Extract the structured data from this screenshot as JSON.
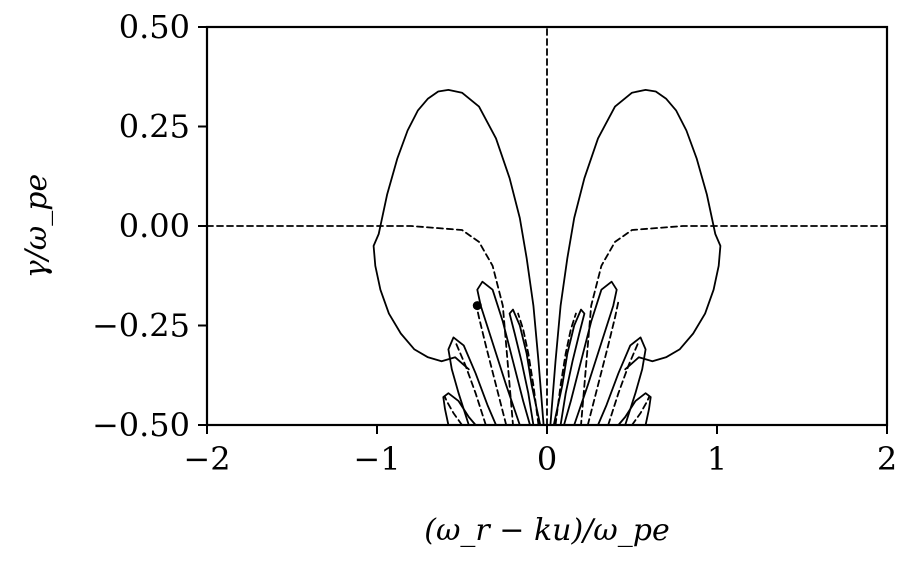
{
  "chart_data": {
    "type": "line",
    "title": "",
    "xlabel": "(ω_r − ku)/ω_pe",
    "ylabel": "γ/ω_pe",
    "xlim": [
      -2,
      2
    ],
    "ylim": [
      -0.5,
      0.5
    ],
    "xticks": [
      -2,
      -1,
      0,
      1,
      2
    ],
    "xtick_labels": [
      "−2",
      "−1",
      "0",
      "1",
      "2"
    ],
    "yticks": [
      -0.5,
      -0.25,
      0.0,
      0.25,
      0.5
    ],
    "ytick_labels": [
      "−0.50",
      "−0.25",
      "0.00",
      "0.25",
      "0.50"
    ],
    "grid": false,
    "legend": "none",
    "marker_point": {
      "x": -0.41,
      "y": -0.2
    },
    "series": [
      {
        "style": "solid",
        "x": [
          0.02,
          0.05,
          0.08,
          0.12,
          0.16,
          0.22,
          0.3,
          0.4,
          0.5,
          0.58,
          0.64,
          0.7,
          0.76,
          0.82,
          0.88,
          0.94,
          0.99,
          1.02,
          1.01,
          0.98,
          0.93,
          0.86,
          0.78,
          0.7,
          0.62,
          0.54,
          0.46
        ],
        "y": [
          -0.5,
          -0.34,
          -0.2,
          -0.08,
          0.02,
          0.12,
          0.22,
          0.3,
          0.335,
          0.342,
          0.338,
          0.32,
          0.29,
          0.24,
          0.17,
          0.08,
          -0.02,
          -0.05,
          -0.1,
          -0.16,
          -0.22,
          -0.27,
          -0.31,
          -0.33,
          -0.34,
          -0.33,
          -0.36
        ]
      },
      {
        "style": "solid",
        "x": [
          -0.02,
          -0.05,
          -0.08,
          -0.12,
          -0.16,
          -0.22,
          -0.3,
          -0.4,
          -0.5,
          -0.58,
          -0.64,
          -0.7,
          -0.76,
          -0.82,
          -0.88,
          -0.94,
          -0.99,
          -1.02,
          -1.01,
          -0.98,
          -0.93,
          -0.86,
          -0.78,
          -0.7,
          -0.62,
          -0.54,
          -0.46
        ],
        "y": [
          -0.5,
          -0.34,
          -0.2,
          -0.08,
          0.02,
          0.12,
          0.22,
          0.3,
          0.335,
          0.342,
          0.338,
          0.32,
          0.29,
          0.24,
          0.17,
          0.08,
          -0.02,
          -0.05,
          -0.1,
          -0.16,
          -0.22,
          -0.27,
          -0.31,
          -0.33,
          -0.34,
          -0.33,
          -0.36
        ]
      },
      {
        "style": "dashed",
        "x": [
          -2.0,
          -0.8,
          -0.5,
          -0.4,
          -0.32,
          -0.26,
          -0.2
        ],
        "y": [
          0.0,
          0.0,
          -0.01,
          -0.04,
          -0.1,
          -0.2,
          -0.5
        ]
      },
      {
        "style": "dashed",
        "x": [
          2.0,
          0.8,
          0.5,
          0.4,
          0.32,
          0.26,
          0.2
        ],
        "y": [
          0.0,
          0.0,
          -0.01,
          -0.04,
          -0.1,
          -0.2,
          -0.5
        ]
      },
      {
        "style": "dashed",
        "x": [
          0.0,
          0.0
        ],
        "y": [
          -0.5,
          0.5
        ]
      },
      {
        "style": "solid",
        "x": [
          -0.16,
          -0.24,
          -0.33,
          -0.39,
          -0.41,
          -0.38,
          -0.32,
          -0.26,
          -0.2,
          -0.14,
          -0.1
        ],
        "y": [
          -0.5,
          -0.4,
          -0.28,
          -0.2,
          -0.16,
          -0.14,
          -0.16,
          -0.24,
          -0.34,
          -0.44,
          -0.5
        ]
      },
      {
        "style": "solid",
        "x": [
          0.16,
          0.24,
          0.33,
          0.39,
          0.41,
          0.38,
          0.32,
          0.26,
          0.2,
          0.14,
          0.1
        ],
        "y": [
          -0.5,
          -0.4,
          -0.28,
          -0.2,
          -0.16,
          -0.14,
          -0.16,
          -0.24,
          -0.34,
          -0.44,
          -0.5
        ]
      },
      {
        "style": "solid",
        "x": [
          -0.46,
          -0.52,
          -0.56,
          -0.58,
          -0.55,
          -0.49,
          -0.42,
          -0.35,
          -0.3
        ],
        "y": [
          -0.5,
          -0.42,
          -0.36,
          -0.31,
          -0.28,
          -0.3,
          -0.37,
          -0.45,
          -0.5
        ]
      },
      {
        "style": "solid",
        "x": [
          0.46,
          0.52,
          0.56,
          0.58,
          0.55,
          0.49,
          0.42,
          0.35,
          0.3
        ],
        "y": [
          -0.5,
          -0.42,
          -0.36,
          -0.31,
          -0.28,
          -0.3,
          -0.37,
          -0.45,
          -0.5
        ]
      },
      {
        "style": "solid",
        "x": [
          -0.58,
          -0.6,
          -0.61,
          -0.58,
          -0.52,
          -0.46,
          -0.42
        ],
        "y": [
          -0.5,
          -0.46,
          -0.43,
          -0.42,
          -0.44,
          -0.48,
          -0.5
        ]
      },
      {
        "style": "solid",
        "x": [
          0.58,
          0.6,
          0.61,
          0.58,
          0.52,
          0.46,
          0.42
        ],
        "y": [
          -0.5,
          -0.46,
          -0.43,
          -0.42,
          -0.44,
          -0.48,
          -0.5
        ]
      },
      {
        "style": "solid",
        "x": [
          -0.08,
          -0.11,
          -0.15,
          -0.19,
          -0.22,
          -0.2,
          -0.16,
          -0.12,
          -0.09,
          -0.06,
          -0.04
        ],
        "y": [
          -0.5,
          -0.42,
          -0.34,
          -0.27,
          -0.22,
          -0.21,
          -0.25,
          -0.32,
          -0.4,
          -0.46,
          -0.5
        ]
      },
      {
        "style": "solid",
        "x": [
          0.08,
          0.11,
          0.15,
          0.19,
          0.22,
          0.2,
          0.16,
          0.12,
          0.09,
          0.06,
          0.04
        ],
        "y": [
          -0.5,
          -0.42,
          -0.34,
          -0.27,
          -0.22,
          -0.21,
          -0.25,
          -0.32,
          -0.4,
          -0.46,
          -0.5
        ]
      },
      {
        "style": "dashed",
        "x": [
          -0.05,
          -0.08,
          -0.11,
          -0.14,
          -0.17
        ],
        "y": [
          -0.5,
          -0.4,
          -0.32,
          -0.26,
          -0.22
        ]
      },
      {
        "style": "dashed",
        "x": [
          0.05,
          0.08,
          0.11,
          0.14,
          0.17
        ],
        "y": [
          -0.5,
          -0.4,
          -0.32,
          -0.26,
          -0.22
        ]
      },
      {
        "style": "dashed",
        "x": [
          -0.24,
          -0.3,
          -0.36,
          -0.4,
          -0.42
        ],
        "y": [
          -0.5,
          -0.4,
          -0.3,
          -0.23,
          -0.19
        ]
      },
      {
        "style": "dashed",
        "x": [
          0.24,
          0.3,
          0.36,
          0.4,
          0.42
        ],
        "y": [
          -0.5,
          -0.4,
          -0.3,
          -0.23,
          -0.19
        ]
      },
      {
        "style": "dashed",
        "x": [
          -0.36,
          -0.42,
          -0.48,
          -0.52,
          -0.54
        ],
        "y": [
          -0.5,
          -0.42,
          -0.35,
          -0.31,
          -0.29
        ]
      },
      {
        "style": "dashed",
        "x": [
          0.36,
          0.42,
          0.48,
          0.52,
          0.54
        ],
        "y": [
          -0.5,
          -0.42,
          -0.35,
          -0.31,
          -0.29
        ]
      },
      {
        "style": "dashed",
        "x": [
          -0.5,
          -0.55,
          -0.59,
          -0.6
        ],
        "y": [
          -0.5,
          -0.47,
          -0.44,
          -0.43
        ]
      },
      {
        "style": "dashed",
        "x": [
          0.5,
          0.55,
          0.59,
          0.6
        ],
        "y": [
          -0.5,
          -0.47,
          -0.44,
          -0.43
        ]
      }
    ]
  }
}
